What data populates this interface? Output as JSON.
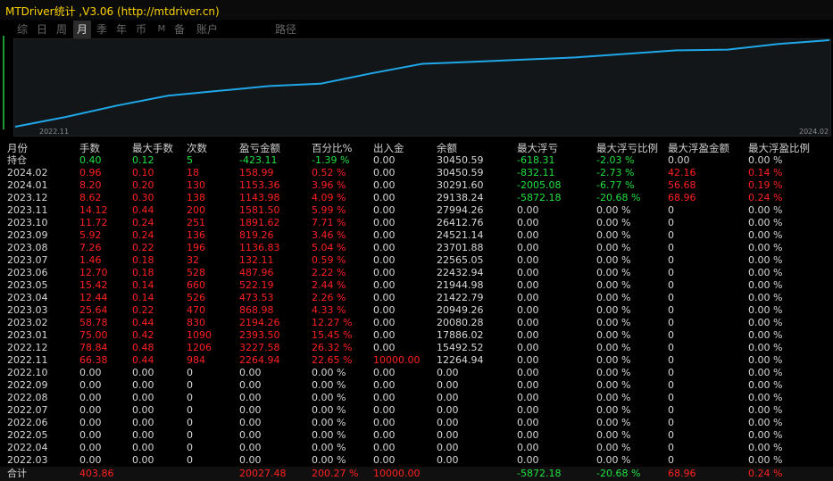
{
  "title": "MTDriver统计 ,V3.06 (http://mtdriver.cn)",
  "tabs": [
    {
      "label": "综",
      "active": false
    },
    {
      "label": "日",
      "active": false
    },
    {
      "label": "周",
      "active": false
    },
    {
      "label": "月",
      "active": true
    },
    {
      "label": "季",
      "active": false
    },
    {
      "label": "年",
      "active": false
    },
    {
      "label": "币",
      "active": false
    },
    {
      "label": "M",
      "active": false
    },
    {
      "label": "备",
      "active": false
    },
    {
      "label": "账户",
      "active": false
    },
    {
      "label": "路径",
      "active": false
    }
  ],
  "colors": {
    "red": "#ff2020",
    "green": "#20e040",
    "white": "#d8d8d8",
    "line": "#1fa7e8"
  },
  "chart_data": {
    "type": "line",
    "x_start_label": "2022.11",
    "x_end_label": "2024.02",
    "points": [
      0,
      2265,
      4893,
      7163,
      8295,
      9422,
      9959,
      12352,
      14546,
      15020,
      15542,
      16029,
      16848,
      17680,
      17836,
      19160,
      20027
    ]
  },
  "table": {
    "headers": [
      "月份",
      "手数",
      "最大手数",
      "次数",
      "盈亏金额",
      "百分比%",
      "出入金",
      "余额",
      "最大浮亏",
      "最大浮亏比例",
      "最大浮盈金额",
      "最大浮盈比例"
    ],
    "rows": [
      {
        "c": [
          "持仓",
          "0.40",
          "0.12",
          "5",
          "-423.11",
          "-1.39 %",
          "0.00",
          "30450.59",
          "-618.31",
          "-2.03 %",
          "0.00",
          "0.00 %"
        ],
        "k": [
          "w",
          "g",
          "g",
          "g",
          "g",
          "g",
          "w",
          "w",
          "g",
          "g",
          "w",
          "w"
        ]
      },
      {
        "c": [
          "2024.02",
          "0.96",
          "0.10",
          "18",
          "158.99",
          "0.52 %",
          "0.00",
          "30450.59",
          "-832.11",
          "-2.73 %",
          "42.16",
          "0.14 %"
        ],
        "k": [
          "w",
          "r",
          "r",
          "r",
          "r",
          "r",
          "w",
          "w",
          "g",
          "g",
          "r",
          "r"
        ]
      },
      {
        "c": [
          "2024.01",
          "8.20",
          "0.20",
          "130",
          "1153.36",
          "3.96 %",
          "0.00",
          "30291.60",
          "-2005.08",
          "-6.77 %",
          "56.68",
          "0.19 %"
        ],
        "k": [
          "w",
          "r",
          "r",
          "r",
          "r",
          "r",
          "w",
          "w",
          "g",
          "g",
          "r",
          "r"
        ]
      },
      {
        "c": [
          "2023.12",
          "8.62",
          "0.30",
          "138",
          "1143.98",
          "4.09 %",
          "0.00",
          "29138.24",
          "-5872.18",
          "-20.68 %",
          "68.96",
          "0.24 %"
        ],
        "k": [
          "w",
          "r",
          "r",
          "r",
          "r",
          "r",
          "w",
          "w",
          "g",
          "g",
          "r",
          "r"
        ]
      },
      {
        "c": [
          "2023.11",
          "14.12",
          "0.44",
          "200",
          "1581.50",
          "5.99 %",
          "0.00",
          "27994.26",
          "0.00",
          "0.00 %",
          "0",
          "0.00 %"
        ],
        "k": [
          "w",
          "r",
          "r",
          "r",
          "r",
          "r",
          "w",
          "w",
          "w",
          "w",
          "w",
          "w"
        ]
      },
      {
        "c": [
          "2023.10",
          "11.72",
          "0.24",
          "251",
          "1891.62",
          "7.71 %",
          "0.00",
          "26412.76",
          "0.00",
          "0.00 %",
          "0",
          "0.00 %"
        ],
        "k": [
          "w",
          "r",
          "r",
          "r",
          "r",
          "r",
          "w",
          "w",
          "w",
          "w",
          "w",
          "w"
        ]
      },
      {
        "c": [
          "2023.09",
          "5.92",
          "0.24",
          "136",
          "819.26",
          "3.46 %",
          "0.00",
          "24521.14",
          "0.00",
          "0.00 %",
          "0",
          "0.00 %"
        ],
        "k": [
          "w",
          "r",
          "r",
          "r",
          "r",
          "r",
          "w",
          "w",
          "w",
          "w",
          "w",
          "w"
        ]
      },
      {
        "c": [
          "2023.08",
          "7.26",
          "0.22",
          "196",
          "1136.83",
          "5.04 %",
          "0.00",
          "23701.88",
          "0.00",
          "0.00 %",
          "0",
          "0.00 %"
        ],
        "k": [
          "w",
          "r",
          "r",
          "r",
          "r",
          "r",
          "w",
          "w",
          "w",
          "w",
          "w",
          "w"
        ]
      },
      {
        "c": [
          "2023.07",
          "1.46",
          "0.18",
          "32",
          "132.11",
          "0.59 %",
          "0.00",
          "22565.05",
          "0.00",
          "0.00 %",
          "0",
          "0.00 %"
        ],
        "k": [
          "w",
          "r",
          "r",
          "r",
          "r",
          "r",
          "w",
          "w",
          "w",
          "w",
          "w",
          "w"
        ]
      },
      {
        "c": [
          "2023.06",
          "12.70",
          "0.18",
          "528",
          "487.96",
          "2.22 %",
          "0.00",
          "22432.94",
          "0.00",
          "0.00 %",
          "0",
          "0.00 %"
        ],
        "k": [
          "w",
          "r",
          "r",
          "r",
          "r",
          "r",
          "w",
          "w",
          "w",
          "w",
          "w",
          "w"
        ]
      },
      {
        "c": [
          "2023.05",
          "15.42",
          "0.14",
          "660",
          "522.19",
          "2.44 %",
          "0.00",
          "21944.98",
          "0.00",
          "0.00 %",
          "0",
          "0.00 %"
        ],
        "k": [
          "w",
          "r",
          "r",
          "r",
          "r",
          "r",
          "w",
          "w",
          "w",
          "w",
          "w",
          "w"
        ]
      },
      {
        "c": [
          "2023.04",
          "12.44",
          "0.14",
          "526",
          "473.53",
          "2.26 %",
          "0.00",
          "21422.79",
          "0.00",
          "0.00 %",
          "0",
          "0.00 %"
        ],
        "k": [
          "w",
          "r",
          "r",
          "r",
          "r",
          "r",
          "w",
          "w",
          "w",
          "w",
          "w",
          "w"
        ]
      },
      {
        "c": [
          "2023.03",
          "25.64",
          "0.22",
          "470",
          "868.98",
          "4.33 %",
          "0.00",
          "20949.26",
          "0.00",
          "0.00 %",
          "0",
          "0.00 %"
        ],
        "k": [
          "w",
          "r",
          "r",
          "r",
          "r",
          "r",
          "w",
          "w",
          "w",
          "w",
          "w",
          "w"
        ]
      },
      {
        "c": [
          "2023.02",
          "58.78",
          "0.44",
          "830",
          "2194.26",
          "12.27 %",
          "0.00",
          "20080.28",
          "0.00",
          "0.00 %",
          "0",
          "0.00 %"
        ],
        "k": [
          "w",
          "r",
          "r",
          "r",
          "r",
          "r",
          "w",
          "w",
          "w",
          "w",
          "w",
          "w"
        ]
      },
      {
        "c": [
          "2023.01",
          "75.00",
          "0.42",
          "1090",
          "2393.50",
          "15.45 %",
          "0.00",
          "17886.02",
          "0.00",
          "0.00 %",
          "0",
          "0.00 %"
        ],
        "k": [
          "w",
          "r",
          "r",
          "r",
          "r",
          "r",
          "w",
          "w",
          "w",
          "w",
          "w",
          "w"
        ]
      },
      {
        "c": [
          "2022.12",
          "78.84",
          "0.48",
          "1206",
          "3227.58",
          "26.32 %",
          "0.00",
          "15492.52",
          "0.00",
          "0.00 %",
          "0",
          "0.00 %"
        ],
        "k": [
          "w",
          "r",
          "r",
          "r",
          "r",
          "r",
          "w",
          "w",
          "w",
          "w",
          "w",
          "w"
        ]
      },
      {
        "c": [
          "2022.11",
          "66.38",
          "0.44",
          "984",
          "2264.94",
          "22.65 %",
          "10000.00",
          "12264.94",
          "0.00",
          "0.00 %",
          "0",
          "0.00 %"
        ],
        "k": [
          "w",
          "r",
          "r",
          "r",
          "r",
          "r",
          "r",
          "w",
          "w",
          "w",
          "w",
          "w"
        ]
      },
      {
        "c": [
          "2022.10",
          "0.00",
          "0.00",
          "0",
          "0.00",
          "0.00 %",
          "0.00",
          "0.00",
          "0.00",
          "0.00 %",
          "0",
          "0.00 %"
        ],
        "k": [
          "w",
          "w",
          "w",
          "w",
          "w",
          "w",
          "w",
          "w",
          "w",
          "w",
          "w",
          "w"
        ]
      },
      {
        "c": [
          "2022.09",
          "0.00",
          "0.00",
          "0",
          "0.00",
          "0.00 %",
          "0.00",
          "0.00",
          "0.00",
          "0.00 %",
          "0",
          "0.00 %"
        ],
        "k": [
          "w",
          "w",
          "w",
          "w",
          "w",
          "w",
          "w",
          "w",
          "w",
          "w",
          "w",
          "w"
        ]
      },
      {
        "c": [
          "2022.08",
          "0.00",
          "0.00",
          "0",
          "0.00",
          "0.00 %",
          "0.00",
          "0.00",
          "0.00",
          "0.00 %",
          "0",
          "0.00 %"
        ],
        "k": [
          "w",
          "w",
          "w",
          "w",
          "w",
          "w",
          "w",
          "w",
          "w",
          "w",
          "w",
          "w"
        ]
      },
      {
        "c": [
          "2022.07",
          "0.00",
          "0.00",
          "0",
          "0.00",
          "0.00 %",
          "0.00",
          "0.00",
          "0.00",
          "0.00 %",
          "0",
          "0.00 %"
        ],
        "k": [
          "w",
          "w",
          "w",
          "w",
          "w",
          "w",
          "w",
          "w",
          "w",
          "w",
          "w",
          "w"
        ]
      },
      {
        "c": [
          "2022.06",
          "0.00",
          "0.00",
          "0",
          "0.00",
          "0.00 %",
          "0.00",
          "0.00",
          "0.00",
          "0.00 %",
          "0",
          "0.00 %"
        ],
        "k": [
          "w",
          "w",
          "w",
          "w",
          "w",
          "w",
          "w",
          "w",
          "w",
          "w",
          "w",
          "w"
        ]
      },
      {
        "c": [
          "2022.05",
          "0.00",
          "0.00",
          "0",
          "0.00",
          "0.00 %",
          "0.00",
          "0.00",
          "0.00",
          "0.00 %",
          "0",
          "0.00 %"
        ],
        "k": [
          "w",
          "w",
          "w",
          "w",
          "w",
          "w",
          "w",
          "w",
          "w",
          "w",
          "w",
          "w"
        ]
      },
      {
        "c": [
          "2022.04",
          "0.00",
          "0.00",
          "0",
          "0.00",
          "0.00 %",
          "0.00",
          "0.00",
          "0.00",
          "0.00 %",
          "0",
          "0.00 %"
        ],
        "k": [
          "w",
          "w",
          "w",
          "w",
          "w",
          "w",
          "w",
          "w",
          "w",
          "w",
          "w",
          "w"
        ]
      },
      {
        "c": [
          "2022.03",
          "0.00",
          "0.00",
          "0",
          "0.00",
          "0.00 %",
          "0.00",
          "0.00",
          "0.00",
          "0.00 %",
          "0",
          "0.00 %"
        ],
        "k": [
          "w",
          "w",
          "w",
          "w",
          "w",
          "w",
          "w",
          "w",
          "w",
          "w",
          "w",
          "w"
        ]
      }
    ],
    "total": {
      "c": [
        "合计",
        "403.86",
        "",
        "",
        "20027.48",
        "200.27 %",
        "10000.00",
        "",
        "-5872.18",
        "-20.68 %",
        "68.96",
        "0.24 %"
      ],
      "k": [
        "w",
        "r",
        "w",
        "w",
        "r",
        "r",
        "r",
        "w",
        "g",
        "g",
        "r",
        "r"
      ]
    }
  }
}
